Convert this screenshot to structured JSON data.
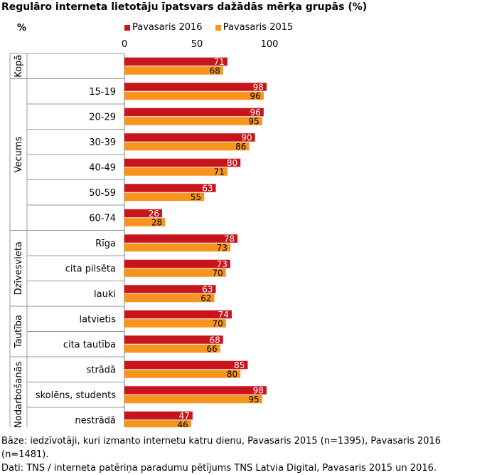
{
  "chart_data": {
    "type": "bar",
    "orientation": "horizontal",
    "title": "Regulāro interneta lietotāju īpatsvars dažādās mērķa grupās (%)",
    "unit_label": "%",
    "xlim": [
      0,
      100
    ],
    "xticks": [
      0,
      50,
      100
    ],
    "grid": false,
    "legend_position": "top",
    "series": [
      {
        "name": "Pavasaris 2016",
        "color": "#c8151b",
        "values": [
          71,
          98,
          96,
          90,
          80,
          63,
          26,
          78,
          73,
          63,
          74,
          68,
          85,
          98,
          47
        ]
      },
      {
        "name": "Pavasaris 2015",
        "color": "#f7941d",
        "values": [
          68,
          96,
          95,
          86,
          71,
          55,
          28,
          73,
          70,
          62,
          70,
          66,
          80,
          95,
          46
        ]
      }
    ],
    "categories": [
      "",
      "15-19",
      "20-29",
      "30-39",
      "40-49",
      "50-59",
      "60-74",
      "Rīga",
      "cita pilsēta",
      "lauki",
      "latvietis",
      "cita tautība",
      "strādā",
      "skolēns, students",
      "nestrādā"
    ],
    "groups": [
      {
        "label": "Kopā",
        "start": 0,
        "count": 1
      },
      {
        "label": "Vecums",
        "start": 1,
        "count": 6
      },
      {
        "label": "Dzīvesvieta",
        "start": 7,
        "count": 3
      },
      {
        "label": "Tautība",
        "start": 10,
        "count": 2
      },
      {
        "label": "Nodarbošanās",
        "start": 12,
        "count": 3
      }
    ]
  },
  "footer": {
    "base": "Bāze: iedzīvotāji, kuri izmanto internetu katru dienu, Pavasaris 2015 (n=1395), Pavasaris 2016 (n=1481).",
    "source": "Dati: TNS / interneta patēriņa paradumu pētījums TNS Latvia Digital, Pavasaris 2015 un 2016."
  }
}
